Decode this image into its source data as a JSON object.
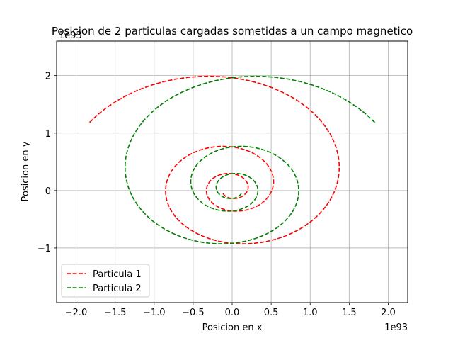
{
  "chart_data": {
    "type": "line",
    "title": "Posicion de 2 particulas cargadas sometidas a un campo magnetico",
    "xlabel": "Posicion en x",
    "ylabel": "Posicion en y",
    "x_offset_label": "1e93",
    "y_offset_label": "1e93",
    "xlim": [
      -2.25,
      2.25
    ],
    "ylim": [
      -1.95,
      2.6
    ],
    "xticks": [
      -2.0,
      -1.5,
      -1.0,
      -0.5,
      0.0,
      0.5,
      1.0,
      1.5,
      2.0
    ],
    "xtick_labels": [
      "−2.0",
      "−1.5",
      "−1.0",
      "−0.5",
      "0.0",
      "0.5",
      "1.0",
      "1.5",
      "2.0"
    ],
    "yticks": [
      -1,
      0,
      1,
      2
    ],
    "ytick_labels": [
      "−1",
      "0",
      "1",
      "2"
    ],
    "grid": true,
    "legend": {
      "placement": "lower-left"
    },
    "series": [
      {
        "name": "Particula 1",
        "color": "#ff0000",
        "linestyle": "dashed",
        "spiral": {
          "center": [
            0.0,
            0.0
          ],
          "scale_x": 1.0,
          "scale_y": 1.0,
          "mirror_x": false,
          "phase_start": -2.6,
          "phase_end": 15.26,
          "points": 200
        }
      },
      {
        "name": "Particula 2",
        "color": "#008000",
        "linestyle": "dashed",
        "spiral": {
          "center": [
            0.0,
            0.0
          ],
          "scale_x": 1.0,
          "scale_y": 1.0,
          "mirror_x": true,
          "phase_start": -2.6,
          "phase_end": 15.26,
          "points": 200
        }
      }
    ]
  }
}
